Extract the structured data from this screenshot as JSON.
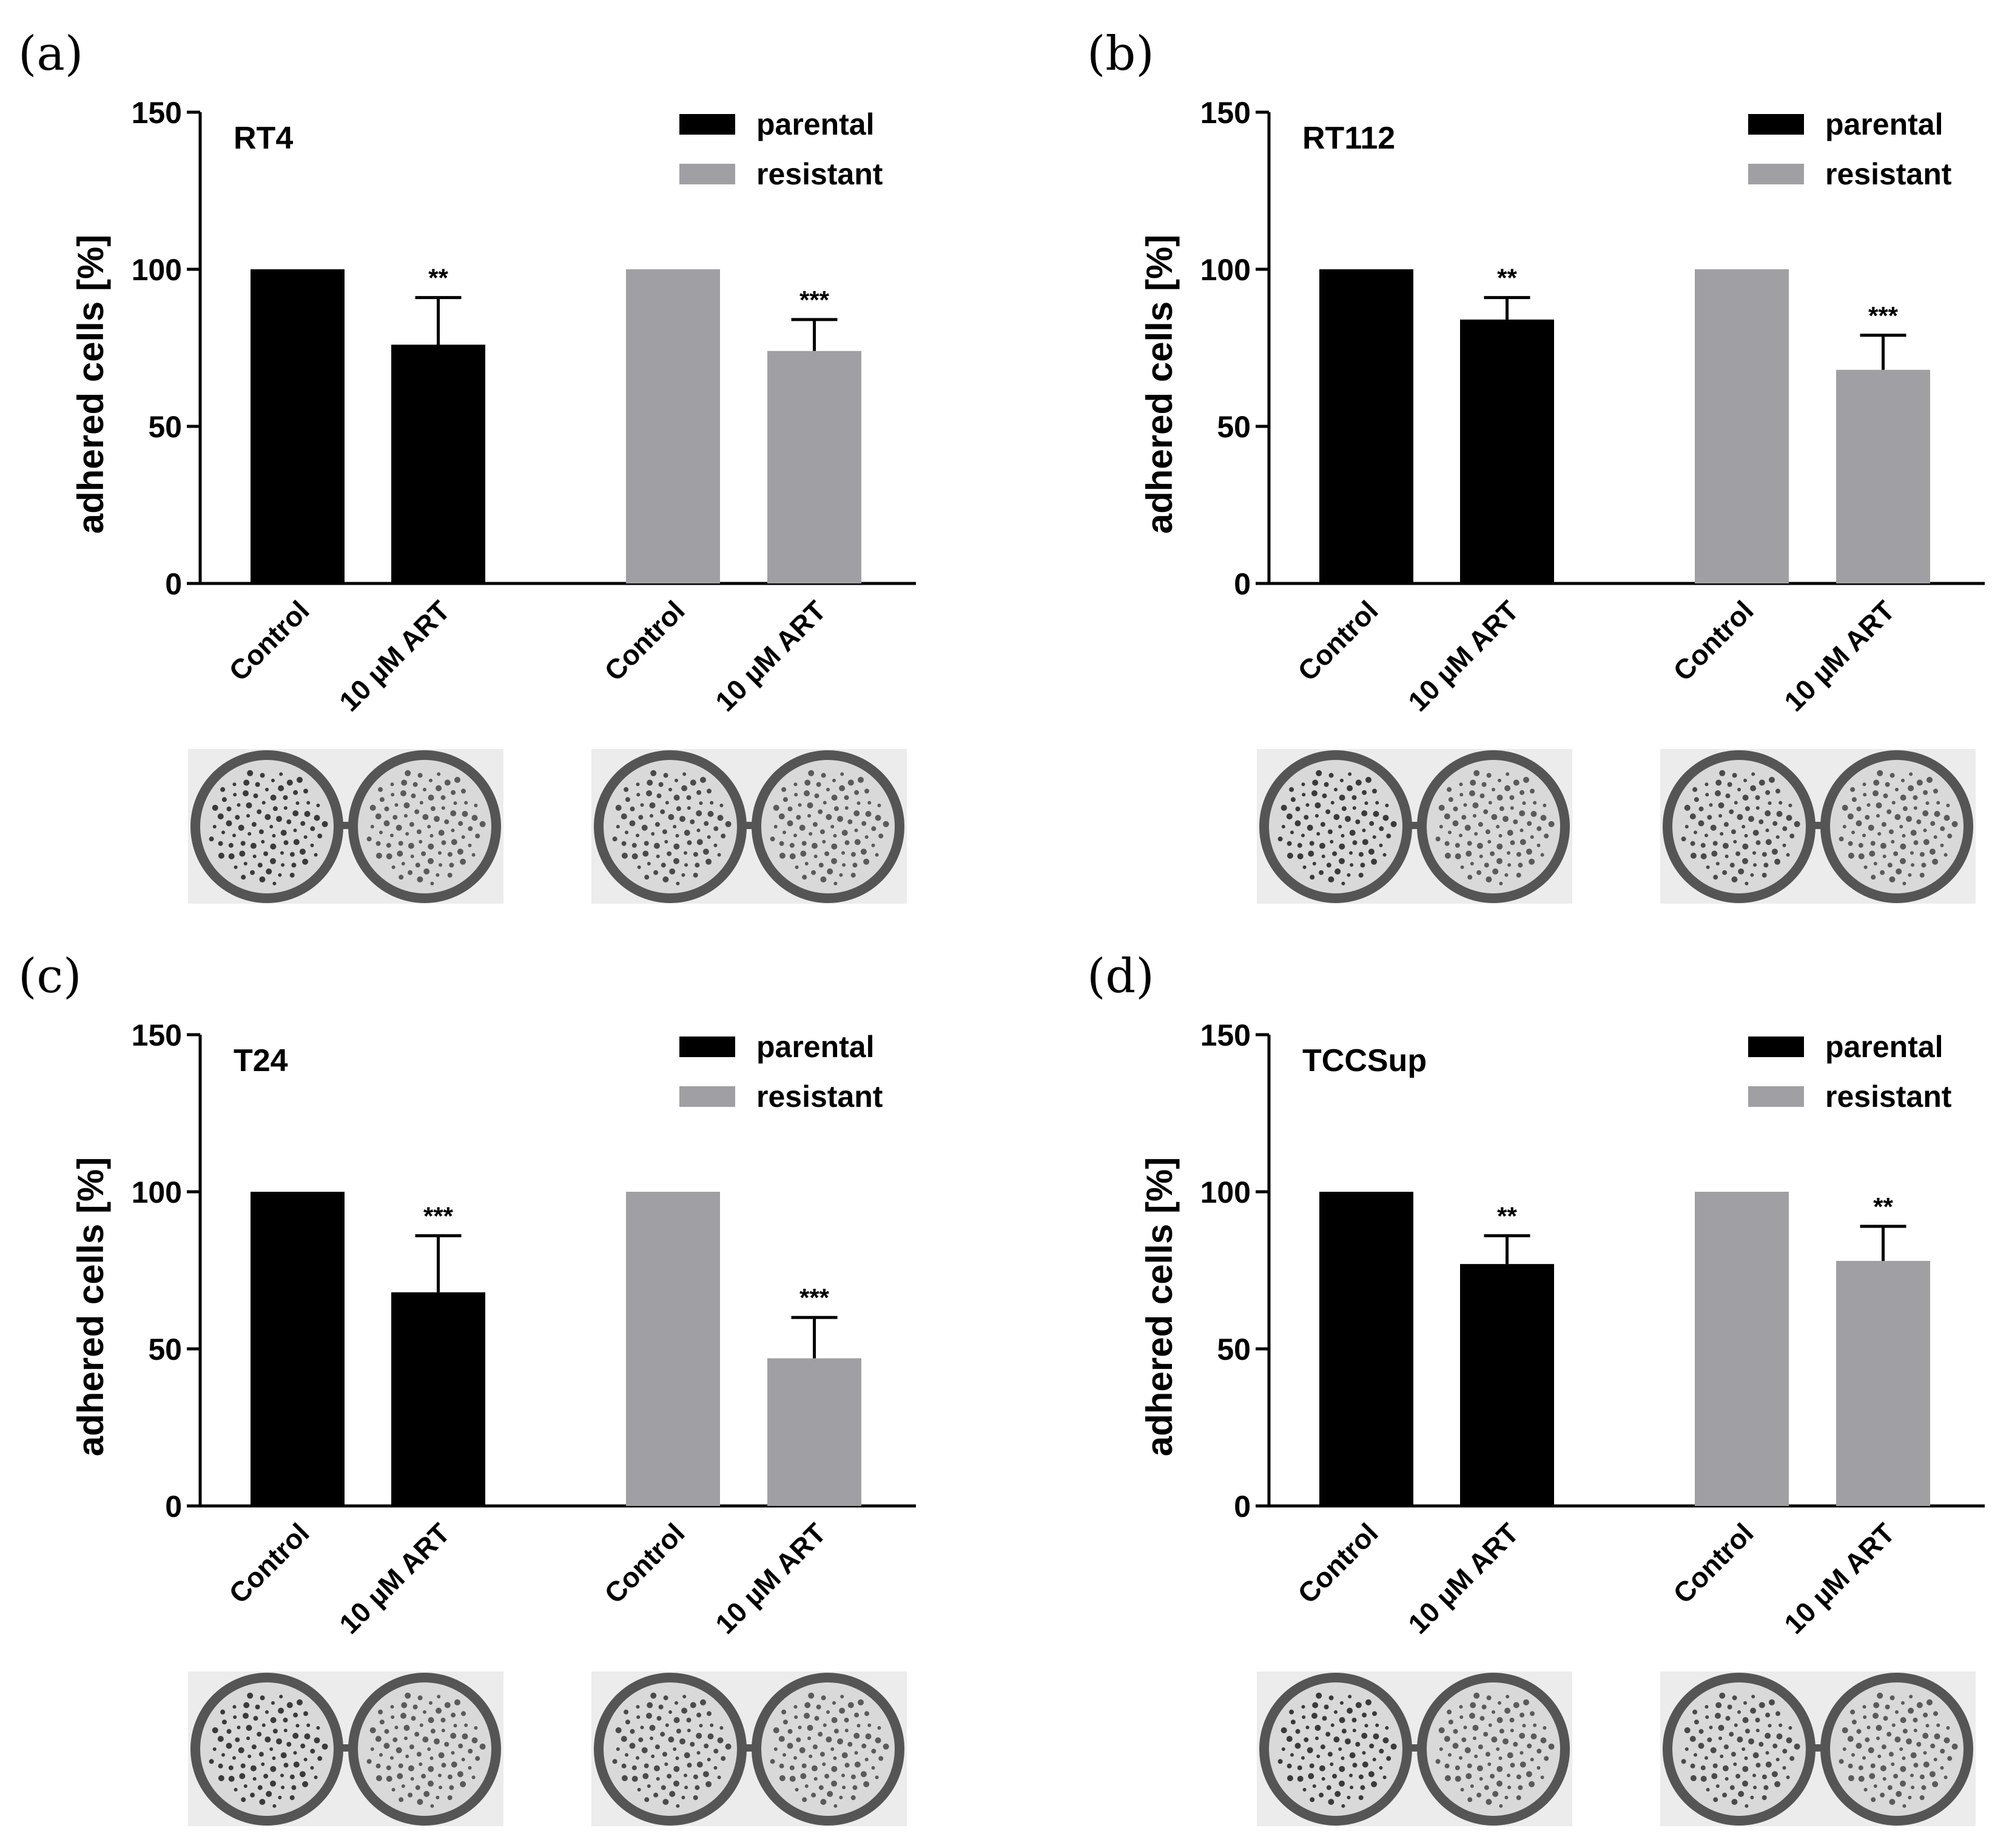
{
  "figure": {
    "bar_colors": {
      "parental": "#000000",
      "resistant": "#a0a0a4"
    }
  },
  "chart_data": [
    {
      "type": "bar",
      "panel": "(a)",
      "title": "RT4",
      "ylabel": "adhered cells [%]",
      "xlabel": "",
      "ylim": [
        0,
        150
      ],
      "yticks": [
        0,
        50,
        100,
        150
      ],
      "legend": [
        "parental",
        "resistant"
      ],
      "legend_position": "top-right",
      "categories": [
        "Control",
        "10 µM ART",
        "Control",
        "10 µM ART"
      ],
      "groups": [
        "parental",
        "parental",
        "resistant",
        "resistant"
      ],
      "values": [
        100,
        76,
        100,
        74
      ],
      "errors": [
        0,
        15,
        0,
        10
      ],
      "significance": [
        "",
        "**",
        "",
        "***"
      ]
    },
    {
      "type": "bar",
      "panel": "(b)",
      "title": "RT112",
      "ylabel": "adhered cells [%]",
      "xlabel": "",
      "ylim": [
        0,
        150
      ],
      "yticks": [
        0,
        50,
        100,
        150
      ],
      "legend": [
        "parental",
        "resistant"
      ],
      "legend_position": "top-right",
      "categories": [
        "Control",
        "10 µM ART",
        "Control",
        "10 µM ART"
      ],
      "groups": [
        "parental",
        "parental",
        "resistant",
        "resistant"
      ],
      "values": [
        100,
        84,
        100,
        68
      ],
      "errors": [
        0,
        7,
        0,
        11
      ],
      "significance": [
        "",
        "**",
        "",
        "***"
      ]
    },
    {
      "type": "bar",
      "panel": "(c)",
      "title": "T24",
      "ylabel": "adhered cells [%]",
      "xlabel": "",
      "ylim": [
        0,
        150
      ],
      "yticks": [
        0,
        50,
        100,
        150
      ],
      "legend": [
        "parental",
        "resistant"
      ],
      "legend_position": "top-right",
      "categories": [
        "Control",
        "10 µM ART",
        "Control",
        "10 µM ART"
      ],
      "groups": [
        "parental",
        "parental",
        "resistant",
        "resistant"
      ],
      "values": [
        100,
        68,
        100,
        47
      ],
      "errors": [
        0,
        18,
        0,
        13
      ],
      "significance": [
        "",
        "***",
        "",
        "***"
      ]
    },
    {
      "type": "bar",
      "panel": "(d)",
      "title": "TCCSup",
      "ylabel": "adhered cells [%]",
      "xlabel": "",
      "ylim": [
        0,
        150
      ],
      "yticks": [
        0,
        50,
        100,
        150
      ],
      "legend": [
        "parental",
        "resistant"
      ],
      "legend_position": "top-right",
      "categories": [
        "Control",
        "10 µM ART",
        "Control",
        "10 µM ART"
      ],
      "groups": [
        "parental",
        "parental",
        "resistant",
        "resistant"
      ],
      "values": [
        100,
        77,
        100,
        78
      ],
      "errors": [
        0,
        9,
        0,
        11
      ],
      "significance": [
        "",
        "**",
        "",
        "**"
      ]
    }
  ]
}
